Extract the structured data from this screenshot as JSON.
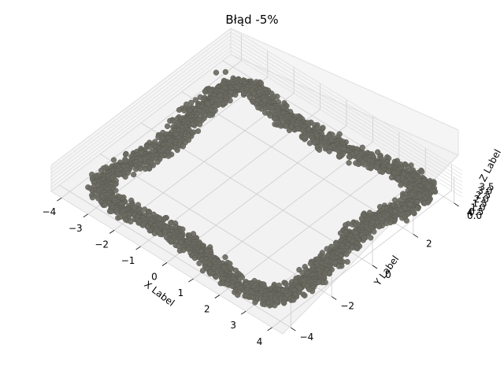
{
  "chart_data": {
    "type": "scatter3d",
    "title": "Błąd -5%",
    "xlabel": "X Label",
    "ylabel": "Y Label",
    "zlabel": "Z Label",
    "xlim": [
      -4.4,
      4.4
    ],
    "ylim": [
      -4.4,
      4.4
    ],
    "zlim": [
      0,
      3.5
    ],
    "xticks": [
      "−4",
      "−3",
      "−2",
      "−1",
      "0",
      "1",
      "2",
      "3",
      "4"
    ],
    "yticks": [
      "−4",
      "−2",
      "0",
      "2",
      "4"
    ],
    "zticks": [
      "0.0",
      "0.5",
      "1.0",
      "1.5",
      "2.0",
      "2.5",
      "3.0",
      "3.5"
    ],
    "grid": true,
    "marker_color": "#6b6b63",
    "series": [
      {
        "shape": "squircle ring",
        "points": [
          [
            -3.0,
            3.6,
            0.2
          ],
          [
            -2.6,
            3.5,
            0.2
          ],
          [
            -2.0,
            3.4,
            0.2
          ],
          [
            -1.4,
            3.3,
            0.2
          ],
          [
            -0.8,
            3.3,
            0.2
          ],
          [
            -0.2,
            3.3,
            0.2
          ],
          [
            0.4,
            3.4,
            0.2
          ],
          [
            1.0,
            3.5,
            0.2
          ],
          [
            1.6,
            3.6,
            0.2
          ],
          [
            2.2,
            3.8,
            0.2
          ],
          [
            2.8,
            3.9,
            0.2
          ],
          [
            3.2,
            3.9,
            0.2
          ],
          [
            3.5,
            3.6,
            0.2
          ],
          [
            3.6,
            3.0,
            0.2
          ],
          [
            3.5,
            2.4,
            0.2
          ],
          [
            3.3,
            1.8,
            0.2
          ],
          [
            3.2,
            1.2,
            0.2
          ],
          [
            3.2,
            0.6,
            0.2
          ],
          [
            3.3,
            0.0,
            0.2
          ],
          [
            3.4,
            -0.6,
            0.2
          ],
          [
            3.5,
            -1.2,
            0.2
          ],
          [
            3.5,
            -1.8,
            0.2
          ],
          [
            3.5,
            -2.4,
            0.2
          ],
          [
            3.4,
            -3.0,
            0.2
          ],
          [
            3.2,
            -3.4,
            0.2
          ],
          [
            2.8,
            -3.6,
            0.2
          ],
          [
            2.2,
            -3.7,
            0.2
          ],
          [
            1.6,
            -3.6,
            0.2
          ],
          [
            1.0,
            -3.5,
            0.2
          ],
          [
            0.4,
            -3.4,
            0.2
          ],
          [
            -0.2,
            -3.3,
            0.2
          ],
          [
            -0.8,
            -3.3,
            0.2
          ],
          [
            -1.4,
            -3.4,
            0.2
          ],
          [
            -2.0,
            -3.5,
            0.2
          ],
          [
            -2.6,
            -3.5,
            0.2
          ],
          [
            -3.1,
            -3.4,
            0.2
          ],
          [
            -3.5,
            -3.1,
            0.2
          ],
          [
            -3.6,
            -2.6,
            0.2
          ],
          [
            -3.5,
            -2.0,
            0.2
          ],
          [
            -3.3,
            -1.4,
            0.2
          ],
          [
            -3.2,
            -0.8,
            0.2
          ],
          [
            -3.2,
            -0.2,
            0.2
          ],
          [
            -3.3,
            0.4,
            0.2
          ],
          [
            -3.4,
            1.0,
            0.2
          ],
          [
            -3.5,
            1.6,
            0.2
          ],
          [
            -3.5,
            2.2,
            0.2
          ],
          [
            -3.5,
            2.8,
            0.2
          ],
          [
            -3.3,
            3.3,
            0.2
          ]
        ]
      }
    ]
  }
}
